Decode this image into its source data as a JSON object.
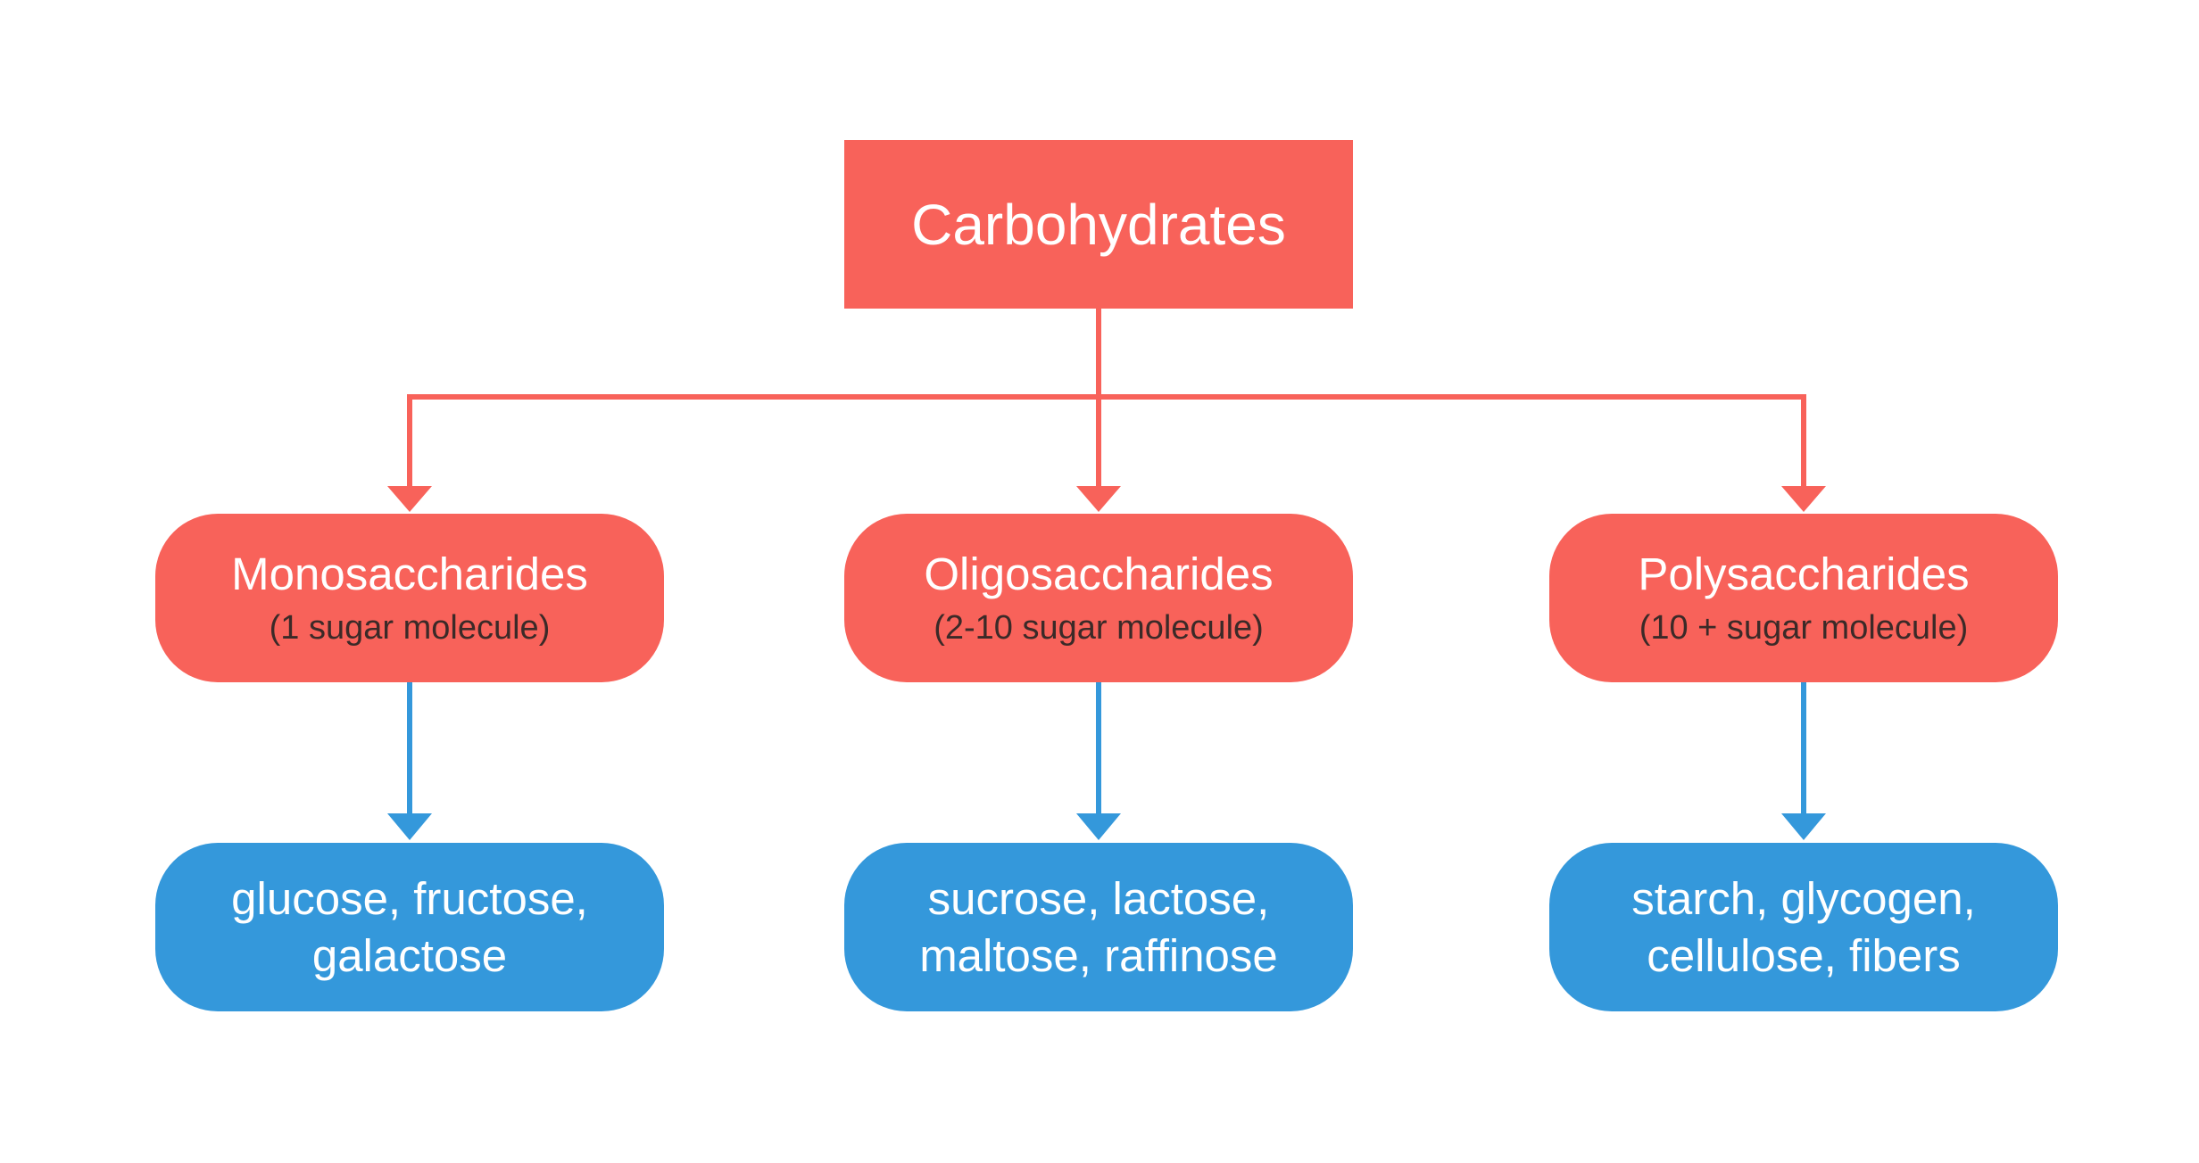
{
  "colors": {
    "red": "#f8625a",
    "blue": "#3498db",
    "background": "#ffffff",
    "text": "#ffffff",
    "subtext": "#3b2a28"
  },
  "root": {
    "label": "Carbohydrates"
  },
  "categories": [
    {
      "name": "Monosaccharides",
      "sub": "(1 sugar molecule)",
      "examples": "glucose, fructose,\ngalactose"
    },
    {
      "name": "Oligosaccharides",
      "sub": "(2-10 sugar molecule)",
      "examples": "sucrose, lactose,\nmaltose, raffinose"
    },
    {
      "name": "Polysaccharides",
      "sub": "(10 + sugar molecule)",
      "examples": "starch, glycogen,\ncellulose, fibers"
    }
  ]
}
